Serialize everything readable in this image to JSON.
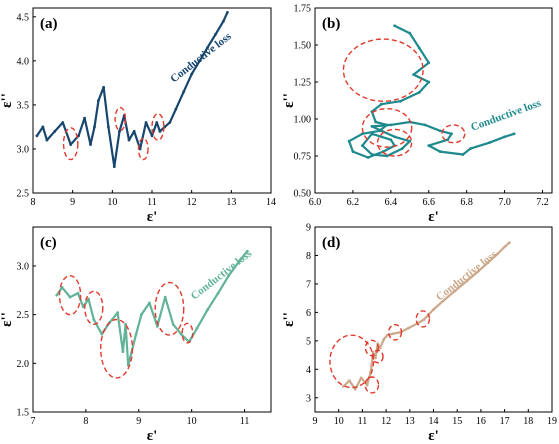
{
  "chart_data": [
    {
      "type": "line",
      "panel_label": "(a)",
      "xlabel": "ε'",
      "ylabel": "ε''",
      "xlim": [
        8,
        14
      ],
      "ylim": [
        2.5,
        4.6
      ],
      "xticks": [
        8,
        9,
        10,
        11,
        12,
        13,
        14
      ],
      "yticks": [
        2.5,
        3.0,
        3.5,
        4.0,
        4.5
      ],
      "ytick_labels": [
        "2.5",
        "3.0",
        "3.5",
        "4.0",
        "4.5"
      ],
      "series": [
        {
          "color": "#17466f",
          "x": [
            8.1,
            8.25,
            8.35,
            8.55,
            8.75,
            8.95,
            9.15,
            9.3,
            9.45,
            9.55,
            9.65,
            9.78,
            9.9,
            10.05,
            10.18,
            10.3,
            10.42,
            10.55,
            10.7,
            10.85,
            11.0,
            11.12,
            11.2,
            11.32,
            11.45,
            11.6,
            11.8,
            12.0,
            12.2,
            12.4,
            12.6,
            12.8,
            12.9
          ],
          "y": [
            3.15,
            3.25,
            3.1,
            3.2,
            3.3,
            3.05,
            3.15,
            3.35,
            3.05,
            3.25,
            3.55,
            3.7,
            3.25,
            2.8,
            3.2,
            3.38,
            3.1,
            3.2,
            3.0,
            3.3,
            3.15,
            3.3,
            3.2,
            3.25,
            3.3,
            3.45,
            3.65,
            3.85,
            4.0,
            4.15,
            4.3,
            4.45,
            4.55
          ]
        }
      ],
      "circles": [
        {
          "cx": 8.95,
          "cy": 3.06,
          "r": 0.18
        },
        {
          "cx": 10.2,
          "cy": 3.34,
          "r": 0.13
        },
        {
          "cx": 10.78,
          "cy": 3.0,
          "r": 0.12
        },
        {
          "cx": 11.15,
          "cy": 3.25,
          "r": 0.15
        }
      ],
      "annotation": "Conductive loss",
      "annotation_pos": [
        11.55,
        3.75
      ],
      "annotation_rot": -38
    },
    {
      "type": "line",
      "panel_label": "(b)",
      "xlabel": "ε'",
      "ylabel": "ε''",
      "xlim": [
        6.0,
        7.25
      ],
      "ylim": [
        0.5,
        1.75
      ],
      "xticks": [
        6.0,
        6.2,
        6.4,
        6.6,
        6.8,
        7.0,
        7.2
      ],
      "xtick_labels": [
        "6.0",
        "6.2",
        "6.4",
        "6.6",
        "6.8",
        "7.0",
        "7.2"
      ],
      "yticks": [
        0.5,
        0.75,
        1.0,
        1.25,
        1.5,
        1.75
      ],
      "ytick_labels": [
        "0.50",
        "0.75",
        "1.00",
        "1.25",
        "1.50",
        "1.75"
      ],
      "series": [
        {
          "color": "#1e8a8e",
          "x": [
            6.42,
            6.5,
            6.55,
            6.6,
            6.52,
            6.6,
            6.55,
            6.45,
            6.35,
            6.3,
            6.32,
            6.38,
            6.34,
            6.25,
            6.18,
            6.2,
            6.28,
            6.36,
            6.42,
            6.4,
            6.35,
            6.3,
            6.25,
            6.3,
            6.38,
            6.46,
            6.5,
            6.42,
            6.35,
            6.3,
            6.4,
            6.5,
            6.58,
            6.66,
            6.72,
            6.7,
            6.6,
            6.66,
            6.78,
            6.82,
            6.92,
            7.0,
            7.05
          ],
          "y": [
            1.63,
            1.58,
            1.48,
            1.38,
            1.3,
            1.25,
            1.18,
            1.12,
            1.1,
            1.05,
            0.98,
            0.96,
            0.92,
            0.9,
            0.85,
            0.78,
            0.74,
            0.78,
            0.82,
            0.86,
            0.88,
            0.9,
            0.82,
            0.76,
            0.75,
            0.8,
            0.85,
            0.88,
            0.92,
            0.95,
            0.96,
            0.98,
            0.96,
            0.92,
            0.9,
            0.86,
            0.82,
            0.78,
            0.76,
            0.8,
            0.84,
            0.88,
            0.9
          ]
        }
      ],
      "circles": [
        {
          "cx": 6.36,
          "cy": 1.33,
          "r": 0.21
        },
        {
          "cx": 6.38,
          "cy": 0.94,
          "r": 0.13
        },
        {
          "cx": 6.42,
          "cy": 0.84,
          "r": 0.09
        },
        {
          "cx": 6.73,
          "cy": 0.9,
          "r": 0.06
        }
      ],
      "annotation": "Conductive loss",
      "annotation_pos": [
        6.83,
        0.92
      ],
      "annotation_rot": -20
    },
    {
      "type": "line",
      "panel_label": "(c)",
      "xlabel": "ε'",
      "ylabel": "ε''",
      "xlim": [
        7,
        11.5
      ],
      "ylim": [
        1.5,
        3.4
      ],
      "xticks": [
        7,
        8,
        9,
        10,
        11
      ],
      "yticks": [
        1.5,
        2.0,
        2.5,
        3.0
      ],
      "ytick_labels": [
        "1.5",
        "2.0",
        "2.5",
        "3.0"
      ],
      "series": [
        {
          "color": "#62b398",
          "x": [
            7.45,
            7.55,
            7.7,
            7.85,
            7.95,
            8.05,
            8.15,
            8.3,
            8.45,
            8.6,
            8.7,
            8.75,
            8.8,
            8.95,
            9.05,
            9.2,
            9.35,
            9.5,
            9.65,
            9.8,
            9.95,
            10.1,
            10.3,
            10.5,
            10.7,
            10.9,
            11.05
          ],
          "y": [
            2.7,
            2.78,
            2.68,
            2.72,
            2.58,
            2.66,
            2.45,
            2.3,
            2.42,
            2.52,
            2.12,
            2.4,
            1.98,
            2.3,
            2.5,
            2.62,
            2.38,
            2.68,
            2.4,
            2.3,
            2.22,
            2.36,
            2.55,
            2.72,
            2.9,
            3.05,
            3.15
          ]
        }
      ],
      "circles": [
        {
          "cx": 7.7,
          "cy": 2.7,
          "r": 0.2
        },
        {
          "cx": 8.15,
          "cy": 2.57,
          "r": 0.17
        },
        {
          "cx": 8.58,
          "cy": 2.15,
          "r": 0.3
        },
        {
          "cx": 9.58,
          "cy": 2.56,
          "r": 0.27
        },
        {
          "cx": 9.92,
          "cy": 2.31,
          "r": 0.1
        }
      ],
      "annotation": "Conductive loss",
      "annotation_pos": [
        10.05,
        2.65
      ],
      "annotation_rot": -38
    },
    {
      "type": "line",
      "panel_label": "(d)",
      "xlabel": "ε'",
      "ylabel": "ε''",
      "xlim": [
        9,
        19
      ],
      "ylim": [
        2.5,
        9
      ],
      "xticks": [
        9,
        10,
        11,
        12,
        13,
        14,
        15,
        16,
        17,
        18,
        19
      ],
      "yticks": [
        3,
        4,
        5,
        6,
        7,
        8,
        9
      ],
      "series": [
        {
          "color": "#cba98a",
          "x": [
            10.2,
            10.45,
            10.7,
            10.95,
            11.2,
            11.35,
            11.45,
            11.55,
            11.65,
            11.75,
            11.9,
            12.05,
            12.3,
            12.6,
            12.95,
            13.3,
            13.6,
            14.0,
            14.4,
            14.9,
            15.4,
            15.9,
            16.3,
            16.7,
            17.0,
            17.2
          ],
          "y": [
            3.4,
            3.6,
            3.3,
            3.7,
            3.45,
            3.9,
            4.6,
            4.4,
            4.9,
            4.75,
            5.05,
            5.2,
            5.25,
            5.3,
            5.45,
            5.6,
            5.75,
            6.1,
            6.4,
            6.75,
            7.1,
            7.45,
            7.75,
            8.05,
            8.3,
            8.45
          ]
        }
      ],
      "circles": [
        {
          "cx": 10.55,
          "cy": 4.28,
          "r": 0.92
        },
        {
          "cx": 11.4,
          "cy": 3.45,
          "r": 0.28
        },
        {
          "cx": 11.65,
          "cy": 4.45,
          "r": 0.22
        },
        {
          "cx": 11.4,
          "cy": 4.75,
          "r": 0.27
        },
        {
          "cx": 12.38,
          "cy": 5.3,
          "r": 0.27
        },
        {
          "cx": 13.55,
          "cy": 5.77,
          "r": 0.28
        }
      ],
      "annotation": "Conductive loss",
      "annotation_pos": [
        14.25,
        6.4
      ],
      "annotation_rot": -38
    }
  ]
}
